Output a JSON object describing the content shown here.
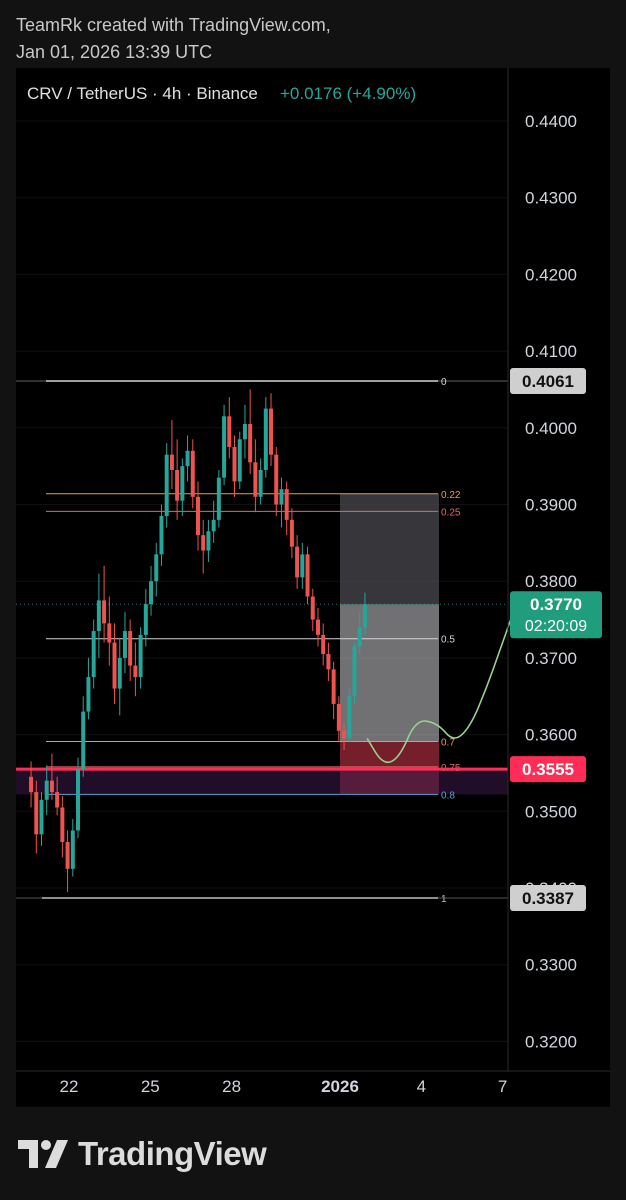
{
  "credit": {
    "line1": "TeamRk created with TradingView.com,",
    "line2": "Jan 01, 2026 13:39 UTC"
  },
  "header": {
    "symbol": "CRV / TetherUS · 4h · Binance",
    "change": "+0.0176 (+4.90%)"
  },
  "footer": {
    "brand": "TradingView"
  },
  "colors": {
    "background": "#000000",
    "page": "#121212",
    "up": "#26a69a",
    "down": "#ef5350",
    "fib_level": "#d4d4d4",
    "fib_orange": "#e89a55",
    "fib_red": "#e06b6b",
    "support_line": "#ff2d55",
    "last_price_badge": "#1f9d7c",
    "axis_badge": "#cfcfcf",
    "projection": "#9ad08f"
  },
  "chart_data": {
    "type": "candlestick",
    "pair": "CRV / TetherUS",
    "interval": "4h",
    "exchange": "Binance",
    "y_axis": {
      "ticks": [
        0.44,
        0.43,
        0.42,
        0.41,
        0.4,
        0.39,
        0.38,
        0.37,
        0.36,
        0.35,
        0.34,
        0.33,
        0.32
      ],
      "tick_labels": [
        "0.4400",
        "0.4300",
        "0.4200",
        "0.4100",
        "0.4000",
        "0.3900",
        "0.3800",
        "0.3700",
        "0.3600",
        "0.3500",
        "0.3400",
        "0.3300",
        "0.3200"
      ],
      "range": [
        0.3155,
        0.4495
      ]
    },
    "x_axis": {
      "labels": [
        {
          "text": "22",
          "day": 22,
          "bold": false
        },
        {
          "text": "25",
          "day": 25,
          "bold": false
        },
        {
          "text": "28",
          "day": 28,
          "bold": false
        },
        {
          "text": "2026",
          "day": 32,
          "bold": true
        },
        {
          "text": "4",
          "day": 35,
          "bold": false
        },
        {
          "text": "7",
          "day": 38,
          "bold": false
        }
      ],
      "unit": "days (Dec 2025 → Jan 2026)"
    },
    "fib_levels": [
      {
        "ratio": "0",
        "price": 0.4061,
        "color": "#d4d4d4",
        "width": 1.5
      },
      {
        "ratio": "0.22",
        "price": 0.3914,
        "color": "#e89a55",
        "width": 1
      },
      {
        "ratio": "0.25",
        "price": 0.3891,
        "color": "#e06b6b",
        "width": 1
      },
      {
        "ratio": "0.5",
        "price": 0.3725,
        "color": "#d4d4d4",
        "width": 1
      },
      {
        "ratio": "0.7",
        "price": 0.3591,
        "color": "#e89a55",
        "width": 1
      },
      {
        "ratio": "0.75",
        "price": 0.3558,
        "color": "#e06b6b",
        "width": 1
      },
      {
        "ratio": "0.8",
        "price": 0.3522,
        "color": "#4fa3d9",
        "width": 1
      },
      {
        "ratio": "1",
        "price": 0.3387,
        "color": "#bdbdbd",
        "width": 1.5
      }
    ],
    "support_price": 0.3555,
    "position": {
      "entry": 0.3591,
      "target": 0.3914,
      "stop": 0.3522,
      "current": 0.377
    },
    "price_badges": [
      {
        "label": "0.4061",
        "price": 0.4061,
        "type": "level"
      },
      {
        "label": "0.3555",
        "price": 0.3555,
        "type": "support"
      },
      {
        "label": "0.3387",
        "price": 0.3387,
        "type": "level"
      }
    ],
    "last_price": {
      "value": "0.3770",
      "price": 0.377,
      "countdown": "02:20:09"
    },
    "ohlc_note": "Approximate 4h candles read from the chart",
    "candles": [
      [
        0.3545,
        0.3565,
        0.3505,
        0.3525
      ],
      [
        0.3525,
        0.354,
        0.3445,
        0.347
      ],
      [
        0.347,
        0.3525,
        0.3455,
        0.3515
      ],
      [
        0.3515,
        0.356,
        0.3495,
        0.354
      ],
      [
        0.354,
        0.3575,
        0.3515,
        0.3525
      ],
      [
        0.3525,
        0.3545,
        0.3495,
        0.3505
      ],
      [
        0.3505,
        0.352,
        0.344,
        0.346
      ],
      [
        0.346,
        0.3475,
        0.3395,
        0.3425
      ],
      [
        0.3425,
        0.349,
        0.3415,
        0.3475
      ],
      [
        0.3475,
        0.357,
        0.3465,
        0.3555
      ],
      [
        0.3555,
        0.365,
        0.3545,
        0.363
      ],
      [
        0.363,
        0.37,
        0.362,
        0.3675
      ],
      [
        0.3675,
        0.375,
        0.366,
        0.3735
      ],
      [
        0.3735,
        0.381,
        0.37,
        0.3775
      ],
      [
        0.3775,
        0.382,
        0.372,
        0.3745
      ],
      [
        0.3745,
        0.378,
        0.369,
        0.372
      ],
      [
        0.372,
        0.3745,
        0.364,
        0.366
      ],
      [
        0.366,
        0.3725,
        0.3625,
        0.37
      ],
      [
        0.37,
        0.376,
        0.368,
        0.3735
      ],
      [
        0.3735,
        0.375,
        0.367,
        0.369
      ],
      [
        0.369,
        0.372,
        0.365,
        0.3675
      ],
      [
        0.3675,
        0.374,
        0.366,
        0.373
      ],
      [
        0.373,
        0.379,
        0.3715,
        0.377
      ],
      [
        0.377,
        0.382,
        0.3755,
        0.38
      ],
      [
        0.38,
        0.385,
        0.378,
        0.3835
      ],
      [
        0.3835,
        0.39,
        0.382,
        0.3885
      ],
      [
        0.3885,
        0.398,
        0.387,
        0.3965
      ],
      [
        0.3965,
        0.401,
        0.392,
        0.3945
      ],
      [
        0.3945,
        0.3985,
        0.388,
        0.3905
      ],
      [
        0.3905,
        0.396,
        0.3885,
        0.395
      ],
      [
        0.395,
        0.399,
        0.393,
        0.397
      ],
      [
        0.397,
        0.3985,
        0.3895,
        0.391
      ],
      [
        0.391,
        0.393,
        0.384,
        0.386
      ],
      [
        0.386,
        0.388,
        0.381,
        0.384
      ],
      [
        0.384,
        0.388,
        0.3825,
        0.3865
      ],
      [
        0.3865,
        0.3905,
        0.385,
        0.388
      ],
      [
        0.388,
        0.3945,
        0.387,
        0.3935
      ],
      [
        0.3935,
        0.403,
        0.3925,
        0.4015
      ],
      [
        0.4015,
        0.404,
        0.396,
        0.3975
      ],
      [
        0.3975,
        0.399,
        0.391,
        0.393
      ],
      [
        0.393,
        0.3995,
        0.392,
        0.3985
      ],
      [
        0.3985,
        0.403,
        0.396,
        0.4005
      ],
      [
        0.4005,
        0.405,
        0.394,
        0.3955
      ],
      [
        0.3955,
        0.3985,
        0.389,
        0.391
      ],
      [
        0.391,
        0.396,
        0.39,
        0.3945
      ],
      [
        0.3945,
        0.404,
        0.3935,
        0.4025
      ],
      [
        0.4025,
        0.4045,
        0.395,
        0.3965
      ],
      [
        0.3965,
        0.3975,
        0.3885,
        0.39
      ],
      [
        0.39,
        0.3935,
        0.387,
        0.392
      ],
      [
        0.392,
        0.393,
        0.386,
        0.388
      ],
      [
        0.388,
        0.3895,
        0.383,
        0.3845
      ],
      [
        0.3845,
        0.386,
        0.379,
        0.3805
      ],
      [
        0.3805,
        0.385,
        0.379,
        0.3835
      ],
      [
        0.3835,
        0.3845,
        0.377,
        0.378
      ],
      [
        0.378,
        0.379,
        0.3735,
        0.375
      ],
      [
        0.375,
        0.3765,
        0.3715,
        0.373
      ],
      [
        0.373,
        0.3745,
        0.369,
        0.3705
      ],
      [
        0.3705,
        0.372,
        0.367,
        0.3685
      ],
      [
        0.3685,
        0.3695,
        0.362,
        0.364
      ],
      [
        0.364,
        0.365,
        0.359,
        0.3605
      ],
      [
        0.3605,
        0.3615,
        0.358,
        0.3595
      ],
      [
        0.3595,
        0.366,
        0.359,
        0.365
      ],
      [
        0.365,
        0.372,
        0.364,
        0.3715
      ],
      [
        0.3715,
        0.376,
        0.3705,
        0.374
      ],
      [
        0.374,
        0.3785,
        0.373,
        0.377
      ]
    ],
    "projection_path": [
      [
        33.0,
        0.3595
      ],
      [
        33.6,
        0.356
      ],
      [
        34.2,
        0.357
      ],
      [
        34.8,
        0.362
      ],
      [
        35.6,
        0.3615
      ],
      [
        36.2,
        0.359
      ],
      [
        36.8,
        0.361
      ],
      [
        37.4,
        0.366
      ],
      [
        37.9,
        0.371
      ],
      [
        38.3,
        0.375
      ]
    ]
  }
}
